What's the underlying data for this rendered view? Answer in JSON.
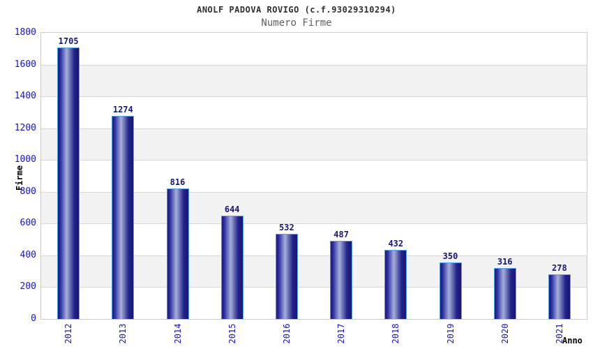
{
  "header": {
    "title": "ANOLF PADOVA ROVIGO (c.f.93029310294)",
    "subtitle": "Numero Firme"
  },
  "chart_data": {
    "type": "bar",
    "title": "ANOLF PADOVA ROVIGO (c.f.93029310294)",
    "subtitle": "Numero Firme",
    "categories": [
      "2012",
      "2013",
      "2014",
      "2015",
      "2016",
      "2017",
      "2018",
      "2019",
      "2020",
      "2021"
    ],
    "values": [
      1705,
      1274,
      816,
      644,
      532,
      487,
      432,
      350,
      316,
      278
    ],
    "xlabel": "Anno",
    "ylabel": "Firme",
    "ylim": [
      0,
      1800
    ],
    "ytick_step": 200,
    "yticks": [
      0,
      200,
      400,
      600,
      800,
      1000,
      1200,
      1400,
      1600,
      1800
    ],
    "grid": "horizontal gridlines with alternating white/gray bands every 200 units",
    "legend": "none",
    "bar_style": "vertical cylinder-gradient bars with light blue outline, value labels above bars"
  },
  "colors": {
    "background": "#ffffff",
    "title": "#2f2f2f",
    "subtitle": "#606060",
    "tick_label": "#1414d2",
    "value_label": "#16167e",
    "axis_label": "#000000",
    "bar_dark": "#1e1e85",
    "bar_light": "#a6afd9",
    "bar_border": "#56a0e8",
    "band_gray": "#f2f2f2",
    "grid_line": "#d8d8d8",
    "plot_border": "#c9c9c9"
  }
}
